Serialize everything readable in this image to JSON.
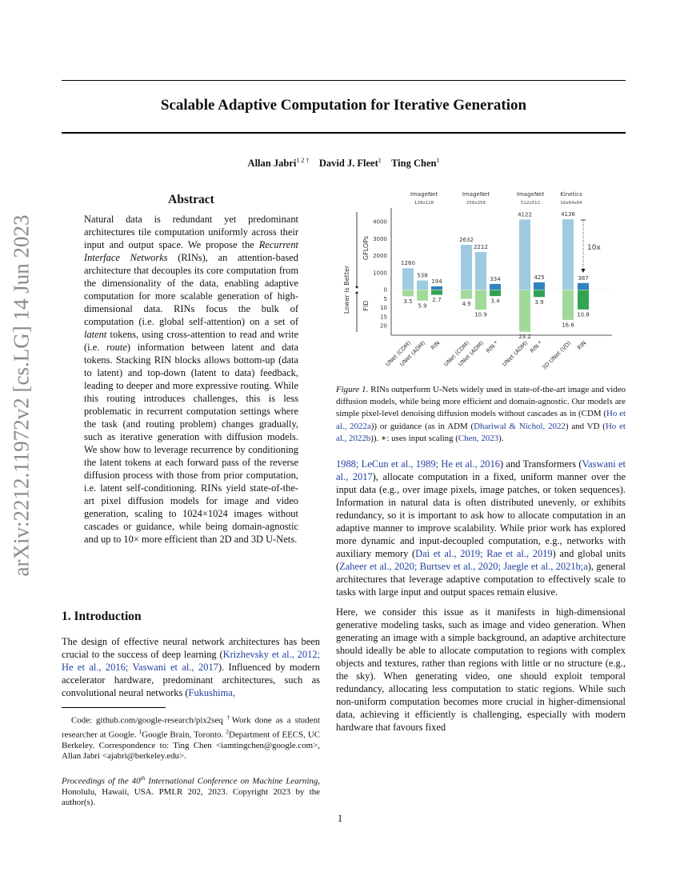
{
  "arxiv_stamp": "arXiv:2212.11972v2  [cs.LG]  14 Jun 2023",
  "title": "Scalable Adaptive Computation for Iterative Generation",
  "authors": [
    {
      "name": "Allan Jabri",
      "sup": "1 2 †"
    },
    {
      "name": "David J. Fleet",
      "sup": "1"
    },
    {
      "name": "Ting Chen",
      "sup": "1"
    }
  ],
  "abstract": {
    "heading": "Abstract",
    "body": [
      {
        "t": "Natural data is redundant yet predominant architectures tile computation uniformly across their input and output space. We propose the "
      },
      {
        "t": "Recurrent Interface Networks",
        "c": "it"
      },
      {
        "t": " (RINs), an attention-based architecture that decouples its core computation from the dimensionality of the data, enabling adaptive computation for more scalable generation of high-dimensional data. RINs focus the bulk of computation (i.e. global self-attention) on a set of "
      },
      {
        "t": "latent",
        "c": "it"
      },
      {
        "t": " tokens, using cross-attention to read and write (i.e. "
      },
      {
        "t": "route",
        "c": "it"
      },
      {
        "t": ") information between latent and data tokens. Stacking RIN blocks allows bottom-up (data to latent) and top-down (latent to data) feedback, leading to deeper and more expressive routing. While this routing introduces challenges, this is less problematic in recurrent computation settings where the task (and routing problem) changes gradually, such as iterative generation with diffusion models. We show how to leverage recurrence by conditioning the latent tokens at each forward pass of the reverse diffusion process with those from prior computation, i.e. latent self-conditioning. RINs yield state-of-the-art pixel diffusion models for image and video generation, scaling to 1024×1024 images without cascades or guidance, while being domain-agnostic and up to 10× more efficient than 2D and 3D U-Nets."
      }
    ]
  },
  "introduction": {
    "heading": "1. Introduction",
    "p1_left": [
      {
        "t": "The design of effective neural network architectures has been crucial to the success of deep learning ("
      },
      {
        "t": "Krizhevsky et al., 2012; He et al., 2016; Vaswani et al., 2017",
        "c": "cite"
      },
      {
        "t": "). Influenced by modern accelerator hardware, predominant architectures, such as convolutional neural networks ("
      },
      {
        "t": "Fukushima,",
        "c": "cite"
      }
    ],
    "p1_right": [
      {
        "t": "1988; LeCun et al., 1989; He et al., 2016",
        "c": "cite"
      },
      {
        "t": ") and Transformers ("
      },
      {
        "t": "Vaswani et al., 2017",
        "c": "cite"
      },
      {
        "t": "), allocate computation in a fixed, uniform manner over the input data (e.g., over image pixels, image patches, or token sequences). Information in natural data is often distributed unevenly, or exhibits redundancy, so it is important to ask how to allocate computation in an adaptive manner to improve scalability. While prior work has explored more dynamic and input-decoupled computation, e.g., networks with auxiliary memory ("
      },
      {
        "t": "Dai et al., 2019; Rae et al., 2019",
        "c": "cite"
      },
      {
        "t": ") and global units ("
      },
      {
        "t": "Zaheer et al., 2020; Burtsev et al., 2020; Jaegle et al., 2021b;a",
        "c": "cite"
      },
      {
        "t": "), general architectures that leverage adaptive computation to effectively scale to tasks with large input and output spaces remain elusive."
      }
    ],
    "p2": [
      {
        "t": "Here, we consider this issue as it manifests in high-dimensional generative modeling tasks, such as image and video generation. When generating an image with a simple background, an adaptive architecture should ideally be able to allocate computation to regions with complex objects and textures, rather than regions with little or no structure (e.g., the sky). When generating video, one should exploit temporal redundancy, allocating less computation to static regions. While such non-uniform computation becomes more crucial in higher-dimensional data, achieving it efficiently is challenging, especially with modern hardware that favours fixed"
      }
    ]
  },
  "footnotes": {
    "affil": [
      {
        "t": "Code: github.com/google-research/pix2seq "
      },
      {
        "t": "†",
        "c": "sup"
      },
      {
        "t": "Work done as a student researcher at Google. "
      },
      {
        "t": "1",
        "c": "sup"
      },
      {
        "t": "Google Brain, Toronto. "
      },
      {
        "t": "2",
        "c": "sup"
      },
      {
        "t": "Department of EECS, UC Berkeley. Correspondence to: Ting Chen <iamtingchen@google.com>, Allan Jabri <ajabri@berkeley.edu>."
      }
    ],
    "proceedings": [
      {
        "t": "Proceedings of the 40",
        "c": "it"
      },
      {
        "t": "th",
        "c": "itsup"
      },
      {
        "t": " International Conference on Machine Learning",
        "c": "it"
      },
      {
        "t": ", Honolulu, Hawaii, USA. PMLR 202, 2023. Copyright 2023 by the author(s)."
      }
    ]
  },
  "figure_caption": [
    {
      "t": "Figure 1.",
      "c": "it"
    },
    {
      "t": " RINs outperform U-Nets widely used in state-of-the-art image and video diffusion models, while being more efficient and domain-agnostic.  Our models are simple pixel-level denoising diffusion models without cascades as in (CDM ("
    },
    {
      "t": "Ho et al., 2022a",
      "c": "cite"
    },
    {
      "t": ")) or guidance (as in ADM ("
    },
    {
      "t": "Dhariwal & Nichol, 2022",
      "c": "cite"
    },
    {
      "t": ") and VD ("
    },
    {
      "t": "Ho et al., 2022b",
      "c": "cite"
    },
    {
      "t": ")). ∗: uses input scaling ("
    },
    {
      "t": "Chen, 2023",
      "c": "cite"
    },
    {
      "t": ")."
    }
  ],
  "page_number": "1",
  "chart_data": {
    "type": "bar",
    "side_label": "Lower is Better",
    "ylabel_top": "GFLOPs",
    "ylabel_bottom": "FID",
    "gflops_ticks": [
      0,
      1000,
      2000,
      3000,
      4000
    ],
    "fid_ticks": [
      5,
      10,
      15,
      20
    ],
    "gflops_range": [
      0,
      4400
    ],
    "fid_range": [
      0,
      24
    ],
    "annotation": "10x",
    "colors": {
      "baseline_gflops": "#9ecae1",
      "rin_gflops": "#3182bd",
      "baseline_fid": "#a1d99b",
      "rin_fid": "#31a354"
    },
    "groups": [
      {
        "title": "ImageNet",
        "subtitle": "128x128",
        "models": [
          {
            "name": "UNet (CDM)",
            "gflops": 1260,
            "fid": 3.5,
            "rin": false
          },
          {
            "name": "UNet (ADM)",
            "gflops": 538,
            "fid": 5.9,
            "rin": false
          },
          {
            "name": "RIN",
            "gflops": 194,
            "fid": 2.7,
            "rin": true
          }
        ]
      },
      {
        "title": "ImageNet",
        "subtitle": "256x256",
        "models": [
          {
            "name": "UNet (CDM)",
            "gflops": 2632,
            "fid": 4.9,
            "rin": false
          },
          {
            "name": "UNet (ADM)",
            "gflops": 2212,
            "fid": 10.9,
            "rin": false
          },
          {
            "name": "RIN *",
            "gflops": 334,
            "fid": 3.4,
            "rin": true
          }
        ]
      },
      {
        "title": "ImageNet",
        "subtitle": "512x512",
        "models": [
          {
            "name": "UNet (ADM)",
            "gflops": 4122,
            "fid": 23.2,
            "rin": false
          },
          {
            "name": "RIN *",
            "gflops": 425,
            "fid": 3.9,
            "rin": true
          }
        ]
      },
      {
        "title": "Kinetics",
        "subtitle": "16x64x64",
        "models": [
          {
            "name": "3D UNet (VD)",
            "gflops": 4136,
            "fid": 16.6,
            "rin": false
          },
          {
            "name": "RIN",
            "gflops": 387,
            "fid": 10.8,
            "rin": true
          }
        ]
      }
    ]
  }
}
